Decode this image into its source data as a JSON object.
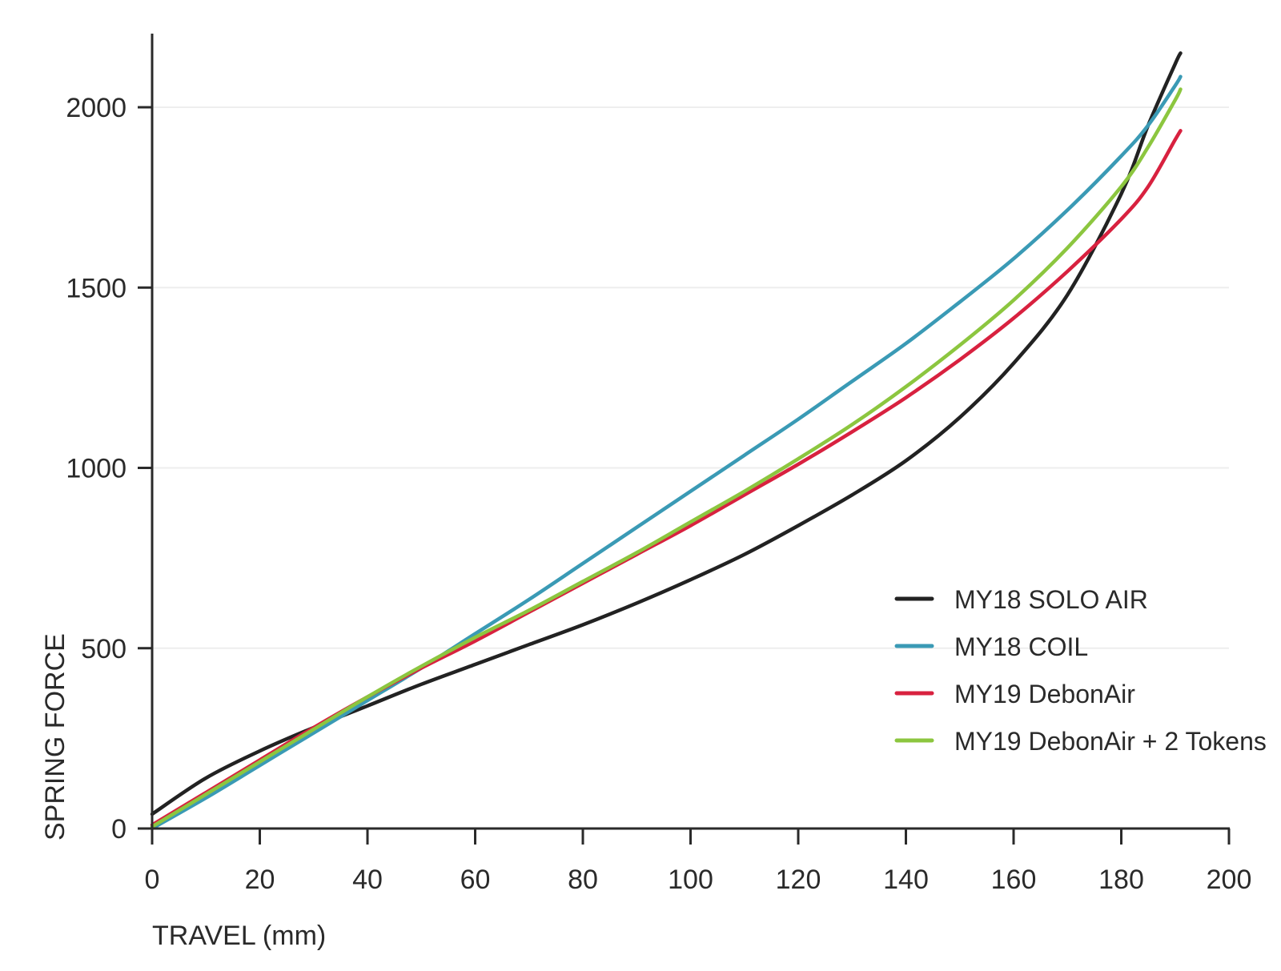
{
  "chart_data": {
    "type": "line",
    "title": "",
    "xlabel": "TRAVEL (mm)",
    "ylabel": "SPRING FORCE",
    "xlim": [
      0,
      200
    ],
    "ylim": [
      0,
      2200
    ],
    "x_ticks": [
      0,
      20,
      40,
      60,
      80,
      100,
      120,
      140,
      160,
      180,
      200
    ],
    "y_ticks": [
      0,
      500,
      1000,
      1500,
      2000
    ],
    "grid": "horizontal",
    "legend_position": "bottom-right",
    "x": [
      0,
      10,
      20,
      30,
      40,
      50,
      60,
      70,
      80,
      90,
      100,
      110,
      120,
      130,
      140,
      150,
      160,
      170,
      180,
      185,
      190,
      191
    ],
    "series": [
      {
        "name": "MY18 SOLO AIR",
        "color": "#222222",
        "values": [
          40,
          140,
          215,
          280,
          340,
          400,
          455,
          510,
          565,
          625,
          690,
          760,
          840,
          925,
          1020,
          1140,
          1290,
          1480,
          1760,
          1950,
          2120,
          2150
        ]
      },
      {
        "name": "MY18 COIL",
        "color": "#3a9ab5",
        "values": [
          0,
          85,
          175,
          265,
          355,
          445,
          540,
          635,
          735,
          835,
          935,
          1035,
          1135,
          1240,
          1345,
          1460,
          1580,
          1715,
          1865,
          1950,
          2060,
          2085
        ]
      },
      {
        "name": "MY19 DebonAir",
        "color": "#d8213f",
        "values": [
          10,
          100,
          190,
          280,
          365,
          445,
          520,
          600,
          680,
          760,
          840,
          925,
          1010,
          1100,
          1195,
          1300,
          1415,
          1545,
          1690,
          1780,
          1910,
          1935
        ]
      },
      {
        "name": "MY19 DebonAir + 2 Tokens",
        "color": "#8cc63f",
        "values": [
          5,
          95,
          185,
          275,
          365,
          450,
          530,
          605,
          685,
          765,
          850,
          935,
          1025,
          1120,
          1225,
          1340,
          1465,
          1610,
          1780,
          1890,
          2020,
          2050
        ]
      }
    ]
  }
}
